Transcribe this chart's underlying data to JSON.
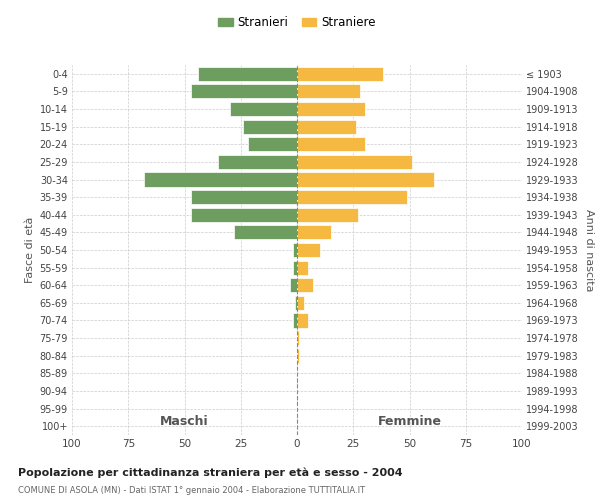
{
  "age_groups": [
    "0-4",
    "5-9",
    "10-14",
    "15-19",
    "20-24",
    "25-29",
    "30-34",
    "35-39",
    "40-44",
    "45-49",
    "50-54",
    "55-59",
    "60-64",
    "65-69",
    "70-74",
    "75-79",
    "80-84",
    "85-89",
    "90-94",
    "95-99",
    "100+"
  ],
  "birth_years": [
    "1999-2003",
    "1994-1998",
    "1989-1993",
    "1984-1988",
    "1979-1983",
    "1974-1978",
    "1969-1973",
    "1964-1968",
    "1959-1963",
    "1954-1958",
    "1949-1953",
    "1944-1948",
    "1939-1943",
    "1934-1938",
    "1929-1933",
    "1924-1928",
    "1919-1923",
    "1914-1918",
    "1909-1913",
    "1904-1908",
    "≤ 1903"
  ],
  "males": [
    44,
    47,
    30,
    24,
    22,
    35,
    68,
    47,
    47,
    28,
    2,
    2,
    3,
    1,
    2,
    0,
    0,
    0,
    0,
    0,
    0
  ],
  "females": [
    38,
    28,
    30,
    26,
    30,
    51,
    61,
    49,
    27,
    15,
    10,
    5,
    7,
    3,
    5,
    1,
    1,
    0,
    0,
    0,
    0
  ],
  "male_color": "#6e9e5f",
  "female_color": "#f5b942",
  "background_color": "#ffffff",
  "grid_color": "#cccccc",
  "title": "Popolazione per cittadinanza straniera per età e sesso - 2004",
  "subtitle": "COMUNE DI ASOLA (MN) - Dati ISTAT 1° gennaio 2004 - Elaborazione TUTTITALIA.IT",
  "xlabel_left": "Maschi",
  "xlabel_right": "Femmine",
  "ylabel_left": "Fasce di età",
  "ylabel_right": "Anni di nascita",
  "legend_males": "Stranieri",
  "legend_females": "Straniere",
  "xlim": 100
}
